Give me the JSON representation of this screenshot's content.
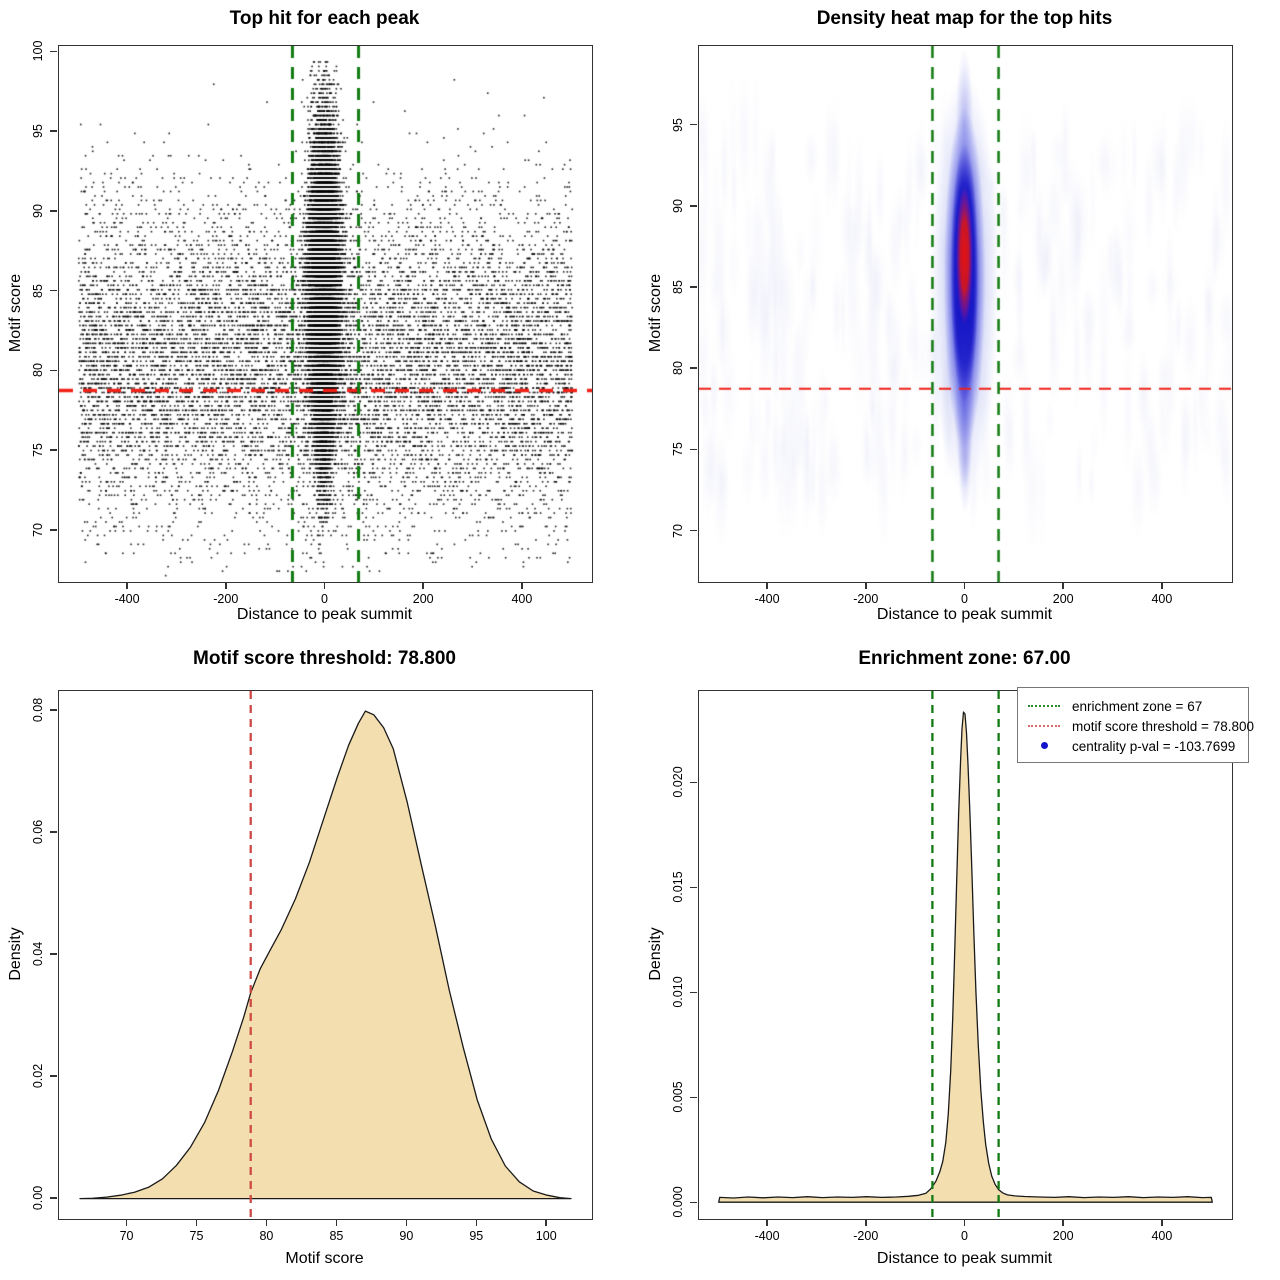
{
  "colors": {
    "background": "#ffffff",
    "box_border": "#333333",
    "text": "#000000",
    "point_black": "rgba(0,0,0,0.88)",
    "curve_fill": "#f3deb0",
    "curve_stroke": "#1a1a1a",
    "threshold_red": "#ef2118",
    "threshold_red_soft": "#cf4a44",
    "zone_green": "#117a11",
    "legend_green": "#2d8b2d",
    "legend_red": "#dd6a6a",
    "legend_blue": "#1414cc"
  },
  "chart_data": [
    {
      "id": "top_hits_scatter",
      "type": "scatter",
      "title": "Top hit for each peak",
      "xlabel": "Distance to peak summit",
      "ylabel": "Motif score",
      "xlim": [
        -540,
        540
      ],
      "ylim": [
        66.8,
        100.4
      ],
      "x_tick_values": [
        -400,
        -200,
        0,
        200,
        400
      ],
      "x_tick_labels": [
        "-400",
        "-200",
        "0",
        "200",
        "400"
      ],
      "y_tick_values": [
        70,
        75,
        80,
        85,
        90,
        95,
        100
      ],
      "y_tick_labels": [
        "70",
        "75",
        "80",
        "85",
        "90",
        "95",
        "100"
      ],
      "threshold_line_y": 78.8,
      "zone_lines_x": [
        -67,
        67
      ],
      "points_model": {
        "description": "Black point cloud: uniform-x background with normal motif-score marginal, plus a dense central column of top hits near summit distance 0; scores quantized in small steps.",
        "seed": 42,
        "n_background": 11000,
        "bg_x_range": [
          -500,
          500
        ],
        "bg_y_mean": 80.6,
        "bg_y_sd": 5.0,
        "n_center": 16000,
        "center_x_mean": -3,
        "center_x_sd": 15,
        "center_x_max_dev": 58,
        "center_y_mean": 86.3,
        "center_y_sd": 4.4,
        "n_center_low": 2600,
        "low_x_sd": 10,
        "low_y_mean": 78.5,
        "low_y_sd": 3.2,
        "y_min": 67.3,
        "y_max": 99.6,
        "y_step": 0.28
      }
    },
    {
      "id": "density_heatmap",
      "type": "heatmap",
      "title": "Density heat map for the top hits",
      "xlabel": "Distance to peak summit",
      "ylabel": "Motif score",
      "xlim": [
        -540,
        540
      ],
      "ylim": [
        66.9,
        99.9
      ],
      "x_tick_values": [
        -400,
        -200,
        0,
        200,
        400
      ],
      "x_tick_labels": [
        "-400",
        "-200",
        "0",
        "200",
        "400"
      ],
      "y_tick_values": [
        70,
        75,
        80,
        85,
        90,
        95
      ],
      "y_tick_labels": [
        "70",
        "75",
        "80",
        "85",
        "90",
        "95"
      ],
      "threshold_line_y": 78.8,
      "zone_lines_x": [
        -67,
        67
      ],
      "streaks": {
        "count": 260,
        "seed": 11,
        "y_band": [
          72.5,
          94.5
        ],
        "color": "150,158,225"
      },
      "blob_layers": [
        {
          "cx": -2,
          "cy": 85.3,
          "hw": 69,
          "hh": 12.9,
          "stops": [
            [
              0,
              "rgba(115,125,228,0.50)"
            ],
            [
              0.6,
              "rgba(130,140,230,0.28)"
            ],
            [
              1,
              "rgba(140,150,235,0)"
            ]
          ]
        },
        {
          "cx": -2,
          "cy": 85.6,
          "hw": 42,
          "hh": 10.5,
          "stops": [
            [
              0,
              "rgba(38,38,212,0.95)"
            ],
            [
              0.55,
              "rgba(48,48,218,0.70)"
            ],
            [
              1,
              "rgba(60,70,225,0)"
            ]
          ]
        },
        {
          "cx": -2,
          "cy": 85.9,
          "hw": 28,
          "hh": 8.0,
          "stops": [
            [
              0,
              "rgba(18,18,196,1)"
            ],
            [
              0.7,
              "rgba(18,18,196,0.85)"
            ],
            [
              1,
              "rgba(18,18,196,0)"
            ]
          ]
        },
        {
          "cx": -2,
          "cy": 87.0,
          "hw": 17,
          "hh": 4.3,
          "stops": [
            [
              0,
              "rgba(228,18,18,1)"
            ],
            [
              0.5,
              "rgba(215,22,28,0.92)"
            ],
            [
              0.85,
              "rgba(150,20,140,0.45)"
            ],
            [
              1,
              "rgba(120,20,170,0)"
            ]
          ]
        },
        {
          "cx": -2,
          "cy": 78.0,
          "hw": 20,
          "hh": 5.3,
          "stops": [
            [
              0,
              "rgba(60,60,218,0.50)"
            ],
            [
              1,
              "rgba(60,60,218,0)"
            ]
          ]
        },
        {
          "cx": -1,
          "cy": 74.5,
          "hw": 14,
          "hh": 3.4,
          "stops": [
            [
              0,
              "rgba(95,100,222,0.32)"
            ],
            [
              1,
              "rgba(95,100,222,0)"
            ]
          ]
        },
        {
          "cx": -2,
          "cy": 95.0,
          "hw": 18,
          "hh": 4.7,
          "stops": [
            [
              0,
              "rgba(95,100,225,0.40)"
            ],
            [
              1,
              "rgba(95,100,225,0)"
            ]
          ]
        }
      ]
    },
    {
      "id": "motif_score_density",
      "type": "area",
      "title": "Motif score threshold: 78.800",
      "xlabel": "Motif score",
      "ylabel": "Density",
      "xlim": [
        65.1,
        103.2
      ],
      "ylim": [
        -0.0033,
        0.0833
      ],
      "x_tick_values": [
        70,
        75,
        80,
        85,
        90,
        95,
        100
      ],
      "x_tick_labels": [
        "70",
        "75",
        "80",
        "85",
        "90",
        "95",
        "100"
      ],
      "y_tick_values": [
        0,
        0.02,
        0.04,
        0.06,
        0.08
      ],
      "y_tick_labels": [
        "0.00",
        "0.02",
        "0.04",
        "0.06",
        "0.08"
      ],
      "threshold_line_x": 78.8,
      "curve": [
        [
          66.6,
          5e-05
        ],
        [
          67.5,
          0.0001
        ],
        [
          68.5,
          0.0003
        ],
        [
          69.5,
          0.0006
        ],
        [
          70.5,
          0.0011
        ],
        [
          71.5,
          0.0019
        ],
        [
          72.5,
          0.0033
        ],
        [
          73.5,
          0.0055
        ],
        [
          74.5,
          0.0085
        ],
        [
          75.5,
          0.0125
        ],
        [
          76.5,
          0.0178
        ],
        [
          77.5,
          0.0242
        ],
        [
          78.3,
          0.0298
        ],
        [
          78.8,
          0.0338
        ],
        [
          79.5,
          0.0378
        ],
        [
          80.2,
          0.0408
        ],
        [
          81,
          0.0442
        ],
        [
          82,
          0.0492
        ],
        [
          83,
          0.0552
        ],
        [
          84,
          0.0622
        ],
        [
          85,
          0.0692
        ],
        [
          85.8,
          0.0744
        ],
        [
          86.5,
          0.078
        ],
        [
          87,
          0.08
        ],
        [
          87.6,
          0.0794
        ],
        [
          88.3,
          0.0773
        ],
        [
          89,
          0.0738
        ],
        [
          90,
          0.065
        ],
        [
          91,
          0.0548
        ],
        [
          92,
          0.0448
        ],
        [
          93,
          0.0342
        ],
        [
          94,
          0.0248
        ],
        [
          95,
          0.0162
        ],
        [
          96,
          0.0098
        ],
        [
          97,
          0.0054
        ],
        [
          98,
          0.0028
        ],
        [
          99,
          0.0013
        ],
        [
          100,
          0.0006
        ],
        [
          100.9,
          0.0002
        ],
        [
          101.7,
          5e-05
        ]
      ]
    },
    {
      "id": "summit_distance_density",
      "type": "area",
      "title": "Enrichment zone: 67.00",
      "xlabel": "Distance to peak summit",
      "ylabel": "Density",
      "xlim": [
        -540,
        540
      ],
      "ylim": [
        -0.00075,
        0.0244
      ],
      "x_tick_values": [
        -400,
        -200,
        0,
        200,
        400
      ],
      "x_tick_labels": [
        "-400",
        "-200",
        "0",
        "200",
        "400"
      ],
      "y_tick_values": [
        0,
        0.005,
        0.01,
        0.015,
        0.02
      ],
      "y_tick_labels": [
        "0.000",
        "0.005",
        "0.010",
        "0.015",
        "0.020"
      ],
      "zone_lines_x": [
        -67,
        67
      ],
      "legend": {
        "entries": [
          {
            "label": "enrichment zone = 67",
            "style": "dotted",
            "color_key": "legend_green"
          },
          {
            "label": "motif score threshold = 78.800",
            "style": "dotted",
            "color_key": "legend_red"
          },
          {
            "label": "centrality p-val = -103.7699",
            "style": "dot",
            "color_key": "legend_blue"
          }
        ]
      },
      "curve": [
        [
          -500,
          5e-05
        ],
        [
          -498,
          0.00028
        ],
        [
          -470,
          0.00025
        ],
        [
          -440,
          0.0003
        ],
        [
          -410,
          0.00026
        ],
        [
          -380,
          0.0003
        ],
        [
          -350,
          0.00027
        ],
        [
          -320,
          0.00031
        ],
        [
          -290,
          0.00027
        ],
        [
          -260,
          0.0003
        ],
        [
          -230,
          0.00028
        ],
        [
          -200,
          0.00031
        ],
        [
          -170,
          0.00028
        ],
        [
          -140,
          0.0003
        ],
        [
          -115,
          0.00033
        ],
        [
          -95,
          0.00038
        ],
        [
          -80,
          0.00048
        ],
        [
          -70,
          0.0007
        ],
        [
          -60,
          0.00105
        ],
        [
          -52,
          0.0015
        ],
        [
          -46,
          0.002
        ],
        [
          -40,
          0.0029
        ],
        [
          -35,
          0.0042
        ],
        [
          -30,
          0.0063
        ],
        [
          -26,
          0.0088
        ],
        [
          -22,
          0.0118
        ],
        [
          -18,
          0.0152
        ],
        [
          -14,
          0.0185
        ],
        [
          -10,
          0.0211
        ],
        [
          -7,
          0.0226
        ],
        [
          -4,
          0.0234
        ],
        [
          -1,
          0.0233
        ],
        [
          2,
          0.0224
        ],
        [
          5,
          0.0209
        ],
        [
          9,
          0.0186
        ],
        [
          13,
          0.0158
        ],
        [
          17,
          0.0128
        ],
        [
          21,
          0.0101
        ],
        [
          26,
          0.0075
        ],
        [
          31,
          0.0054
        ],
        [
          36,
          0.0039
        ],
        [
          41,
          0.0028
        ],
        [
          47,
          0.0019
        ],
        [
          53,
          0.0013
        ],
        [
          60,
          0.0009
        ],
        [
          67,
          0.00065
        ],
        [
          75,
          0.0005
        ],
        [
          85,
          0.0004
        ],
        [
          100,
          0.00035
        ],
        [
          120,
          0.00032
        ],
        [
          150,
          0.0003
        ],
        [
          180,
          0.00028
        ],
        [
          210,
          0.00031
        ],
        [
          240,
          0.00027
        ],
        [
          270,
          0.0003
        ],
        [
          300,
          0.00028
        ],
        [
          330,
          0.00031
        ],
        [
          360,
          0.00027
        ],
        [
          390,
          0.0003
        ],
        [
          420,
          0.00028
        ],
        [
          450,
          0.00031
        ],
        [
          480,
          0.00027
        ],
        [
          498,
          0.00028
        ],
        [
          500,
          5e-05
        ]
      ]
    }
  ]
}
